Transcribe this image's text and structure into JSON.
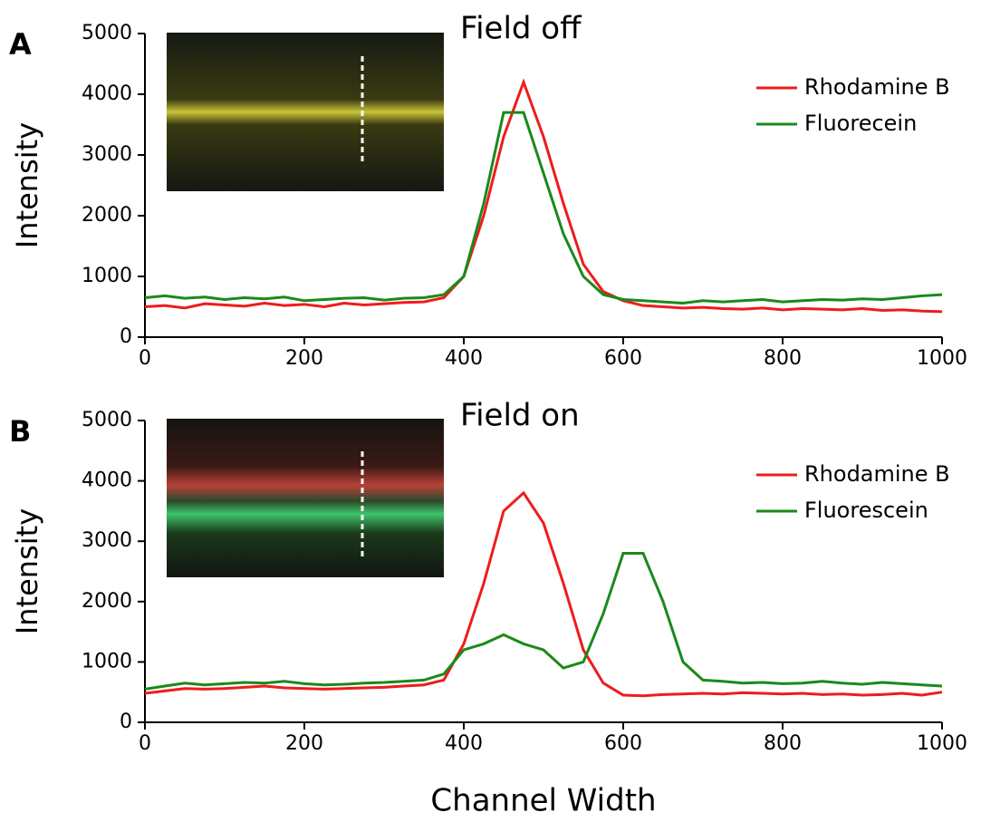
{
  "chart_data": [
    {
      "type": "line",
      "panel_label": "A",
      "title": "Field off",
      "y_label": "Intensity",
      "x": [
        0,
        25,
        50,
        75,
        100,
        125,
        150,
        175,
        200,
        225,
        250,
        275,
        300,
        325,
        350,
        375,
        400,
        425,
        450,
        475,
        500,
        525,
        550,
        575,
        600,
        625,
        650,
        675,
        700,
        725,
        750,
        775,
        800,
        825,
        850,
        875,
        900,
        925,
        950,
        975,
        1000
      ],
      "series": [
        {
          "name": "Rhodamine B",
          "color": "#ee1c1c",
          "values": [
            500,
            520,
            480,
            550,
            530,
            510,
            560,
            520,
            540,
            500,
            560,
            530,
            550,
            570,
            580,
            650,
            1000,
            2000,
            3300,
            4200,
            3300,
            2200,
            1200,
            750,
            600,
            520,
            500,
            480,
            490,
            470,
            460,
            480,
            450,
            470,
            460,
            450,
            470,
            440,
            450,
            430,
            420
          ]
        },
        {
          "name": "Fluorecein",
          "color": "#1a8a1a",
          "values": [
            650,
            680,
            640,
            660,
            620,
            650,
            630,
            660,
            600,
            620,
            640,
            650,
            610,
            640,
            650,
            700,
            1000,
            2200,
            3700,
            3700,
            2700,
            1700,
            1000,
            700,
            620,
            600,
            580,
            560,
            600,
            580,
            600,
            620,
            580,
            600,
            620,
            610,
            630,
            620,
            650,
            680,
            700
          ]
        }
      ],
      "xlim": [
        0,
        1000
      ],
      "xticks": [
        0,
        200,
        400,
        600,
        800,
        1000
      ],
      "ylim": [
        0,
        5000
      ],
      "yticks": [
        0,
        1000,
        2000,
        3000,
        4000,
        5000
      ],
      "legend": "upper right"
    },
    {
      "type": "line",
      "panel_label": "B",
      "title": "Field on",
      "y_label": "Intensity",
      "x_label": "Channel Width",
      "x": [
        0,
        25,
        50,
        75,
        100,
        125,
        150,
        175,
        200,
        225,
        250,
        275,
        300,
        325,
        350,
        375,
        400,
        425,
        450,
        475,
        500,
        525,
        550,
        575,
        600,
        625,
        650,
        675,
        700,
        725,
        750,
        775,
        800,
        825,
        850,
        875,
        900,
        925,
        950,
        975,
        1000
      ],
      "series": [
        {
          "name": "Rhodamine B",
          "color": "#ee1c1c",
          "values": [
            480,
            520,
            560,
            550,
            560,
            580,
            600,
            570,
            560,
            550,
            560,
            570,
            580,
            600,
            620,
            700,
            1300,
            2300,
            3500,
            3800,
            3300,
            2300,
            1200,
            650,
            450,
            440,
            460,
            470,
            480,
            470,
            490,
            480,
            470,
            480,
            460,
            470,
            450,
            460,
            480,
            450,
            500
          ]
        },
        {
          "name": "Fluorescein",
          "color": "#1a8a1a",
          "values": [
            550,
            600,
            650,
            620,
            640,
            660,
            650,
            680,
            640,
            620,
            630,
            650,
            660,
            680,
            700,
            800,
            1200,
            1300,
            1450,
            1300,
            1200,
            900,
            1000,
            1800,
            2800,
            2800,
            2000,
            1000,
            700,
            680,
            650,
            660,
            640,
            650,
            680,
            650,
            630,
            660,
            640,
            620,
            600
          ]
        }
      ],
      "xlim": [
        0,
        1000
      ],
      "xticks": [
        0,
        200,
        400,
        600,
        800,
        1000
      ],
      "ylim": [
        0,
        5000
      ],
      "yticks": [
        0,
        1000,
        2000,
        3000,
        4000,
        5000
      ],
      "legend": "upper right"
    }
  ]
}
